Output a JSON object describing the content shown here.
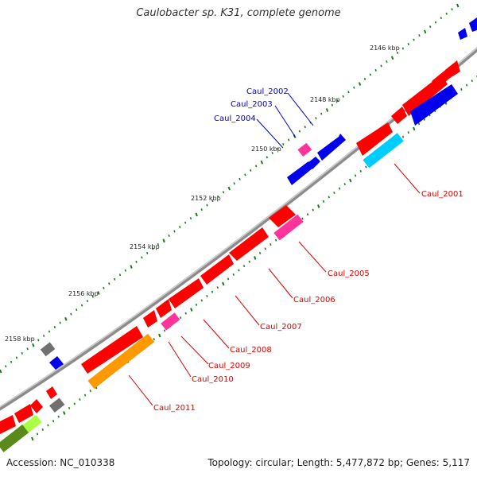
{
  "title": "Caulobacter sp. K31, complete genome",
  "footer": {
    "accession": "Accession: NC_010338",
    "summary": "Topology: circular; Length: 5,477,872 bp; Genes: 5,117"
  },
  "colors": {
    "forward_cds": "#ff0000",
    "reverse_cds": "#0000ee",
    "forward_label": "#dd0000",
    "reverse_label": "#0000cc",
    "backbone": "#8c8c8c",
    "tick": "#1a7a1a",
    "cyan": "#00ccff",
    "pink": "#ff3399",
    "orange": "#ff9900",
    "grey": "#707070",
    "olive": "#5a8a1a",
    "lime": "#aaff44"
  },
  "ticks": [
    "2146 kbp",
    "2148 kbp",
    "2150 kbp",
    "2152 kbp",
    "2154 kbp",
    "2156 kbp",
    "2158 kbp"
  ],
  "gene_labels": [
    {
      "text": "Caul_2001",
      "strand": "forward"
    },
    {
      "text": "Caul_2002",
      "strand": "reverse"
    },
    {
      "text": "Caul_2003",
      "strand": "reverse"
    },
    {
      "text": "Caul_2004",
      "strand": "reverse"
    },
    {
      "text": "Caul_2005",
      "strand": "forward"
    },
    {
      "text": "Caul_2006",
      "strand": "forward"
    },
    {
      "text": "Caul_2007",
      "strand": "forward"
    },
    {
      "text": "Caul_2008",
      "strand": "forward"
    },
    {
      "text": "Caul_2009",
      "strand": "forward"
    },
    {
      "text": "Caul_2010",
      "strand": "forward"
    },
    {
      "text": "Caul_2011",
      "strand": "forward"
    }
  ]
}
